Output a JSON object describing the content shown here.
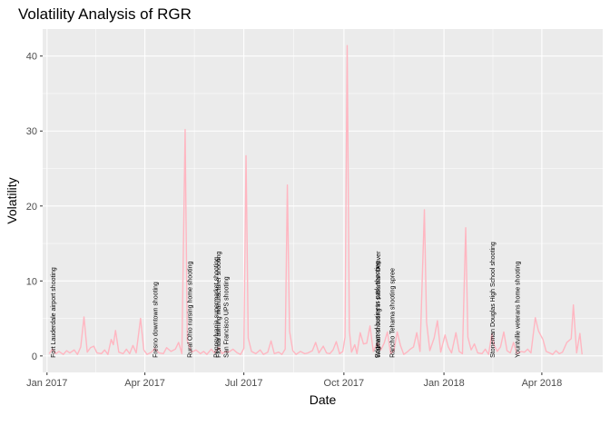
{
  "chart_data": {
    "type": "line",
    "title": "Volatility Analysis of RGR",
    "xlabel": "Date",
    "ylabel": "Volatility",
    "x_start": "2016-12-28",
    "x_end": "2018-05-27",
    "ylim": [
      -2.2,
      43.6
    ],
    "grid": true,
    "line_color": "#ffb6c1",
    "panel_background": "#ebebeb",
    "x_ticks": [
      {
        "date": "2017-01-01",
        "label": "Jan 2017"
      },
      {
        "date": "2017-04-01",
        "label": "Apr 2017"
      },
      {
        "date": "2017-07-01",
        "label": "Jul 2017"
      },
      {
        "date": "2017-10-01",
        "label": "Oct 2017"
      },
      {
        "date": "2018-01-01",
        "label": "Jan 2018"
      },
      {
        "date": "2018-04-01",
        "label": "Apr 2018"
      }
    ],
    "y_ticks": [
      0,
      10,
      20,
      30,
      40
    ],
    "series": [
      {
        "points": [
          [
            "2017-01-03",
            0.3
          ],
          [
            "2017-01-06",
            0.9
          ],
          [
            "2017-01-09",
            0.3
          ],
          [
            "2017-01-12",
            0.6
          ],
          [
            "2017-01-16",
            0.2
          ],
          [
            "2017-01-19",
            0.7
          ],
          [
            "2017-01-22",
            0.4
          ],
          [
            "2017-01-26",
            0.8
          ],
          [
            "2017-01-29",
            0.2
          ],
          [
            "2017-02-01",
            1.2
          ],
          [
            "2017-02-04",
            5.2
          ],
          [
            "2017-02-07",
            0.5
          ],
          [
            "2017-02-10",
            1.1
          ],
          [
            "2017-02-13",
            1.3
          ],
          [
            "2017-02-16",
            0.4
          ],
          [
            "2017-02-20",
            0.3
          ],
          [
            "2017-02-23",
            0.8
          ],
          [
            "2017-02-26",
            0.2
          ],
          [
            "2017-03-01",
            2.2
          ],
          [
            "2017-03-03",
            1.5
          ],
          [
            "2017-03-05",
            3.4
          ],
          [
            "2017-03-08",
            0.5
          ],
          [
            "2017-03-12",
            0.3
          ],
          [
            "2017-03-15",
            0.9
          ],
          [
            "2017-03-18",
            0.3
          ],
          [
            "2017-03-21",
            1.4
          ],
          [
            "2017-03-24",
            0.4
          ],
          [
            "2017-03-28",
            5.0
          ],
          [
            "2017-03-31",
            0.8
          ],
          [
            "2017-04-03",
            0.2
          ],
          [
            "2017-04-07",
            0.5
          ],
          [
            "2017-04-10",
            1.0
          ],
          [
            "2017-04-14",
            0.4
          ],
          [
            "2017-04-18",
            0.3
          ],
          [
            "2017-04-21",
            1.1
          ],
          [
            "2017-04-25",
            0.6
          ],
          [
            "2017-04-29",
            0.9
          ],
          [
            "2017-05-02",
            1.8
          ],
          [
            "2017-05-05",
            0.3
          ],
          [
            "2017-05-08",
            30.2
          ],
          [
            "2017-05-10",
            2.0
          ],
          [
            "2017-05-14",
            0.5
          ],
          [
            "2017-05-18",
            0.8
          ],
          [
            "2017-05-22",
            0.3
          ],
          [
            "2017-05-25",
            0.6
          ],
          [
            "2017-05-28",
            0.2
          ],
          [
            "2017-06-01",
            0.9
          ],
          [
            "2017-06-04",
            0.4
          ],
          [
            "2017-06-08",
            1.1
          ],
          [
            "2017-06-11",
            0.3
          ],
          [
            "2017-06-14",
            0.6
          ],
          [
            "2017-06-17",
            0.5
          ],
          [
            "2017-06-21",
            0.9
          ],
          [
            "2017-06-25",
            0.4
          ],
          [
            "2017-06-28",
            0.2
          ],
          [
            "2017-07-01",
            1.0
          ],
          [
            "2017-07-03",
            26.7
          ],
          [
            "2017-07-05",
            2.4
          ],
          [
            "2017-07-08",
            0.6
          ],
          [
            "2017-07-12",
            0.3
          ],
          [
            "2017-07-16",
            0.8
          ],
          [
            "2017-07-19",
            0.2
          ],
          [
            "2017-07-23",
            0.5
          ],
          [
            "2017-07-26",
            2.0
          ],
          [
            "2017-07-29",
            0.3
          ],
          [
            "2017-08-02",
            0.5
          ],
          [
            "2017-08-05",
            0.2
          ],
          [
            "2017-08-08",
            0.9
          ],
          [
            "2017-08-10",
            22.8
          ],
          [
            "2017-08-12",
            3.3
          ],
          [
            "2017-08-15",
            0.7
          ],
          [
            "2017-08-18",
            0.2
          ],
          [
            "2017-08-22",
            0.6
          ],
          [
            "2017-08-26",
            0.3
          ],
          [
            "2017-08-29",
            0.4
          ],
          [
            "2017-09-02",
            0.7
          ],
          [
            "2017-09-05",
            1.8
          ],
          [
            "2017-09-08",
            0.4
          ],
          [
            "2017-09-12",
            1.3
          ],
          [
            "2017-09-15",
            0.4
          ],
          [
            "2017-09-18",
            0.3
          ],
          [
            "2017-09-21",
            0.8
          ],
          [
            "2017-09-24",
            1.9
          ],
          [
            "2017-09-27",
            0.3
          ],
          [
            "2017-09-30",
            0.6
          ],
          [
            "2017-10-02",
            2.5
          ],
          [
            "2017-10-04",
            41.4
          ],
          [
            "2017-10-06",
            3.4
          ],
          [
            "2017-10-08",
            0.5
          ],
          [
            "2017-10-11",
            1.5
          ],
          [
            "2017-10-13",
            0.3
          ],
          [
            "2017-10-16",
            3.1
          ],
          [
            "2017-10-19",
            1.6
          ],
          [
            "2017-10-22",
            1.7
          ],
          [
            "2017-10-25",
            4.0
          ],
          [
            "2017-10-28",
            0.6
          ],
          [
            "2017-11-01",
            1.8
          ],
          [
            "2017-11-04",
            0.8
          ],
          [
            "2017-11-07",
            1.7
          ],
          [
            "2017-11-10",
            3.2
          ],
          [
            "2017-11-13",
            0.3
          ],
          [
            "2017-11-16",
            0.7
          ],
          [
            "2017-11-19",
            3.2
          ],
          [
            "2017-11-22",
            1.4
          ],
          [
            "2017-11-25",
            0.2
          ],
          [
            "2017-11-28",
            0.5
          ],
          [
            "2017-12-01",
            0.9
          ],
          [
            "2017-12-04",
            1.2
          ],
          [
            "2017-12-07",
            3.1
          ],
          [
            "2017-12-10",
            0.6
          ],
          [
            "2017-12-14",
            19.5
          ],
          [
            "2017-12-16",
            4.5
          ],
          [
            "2017-12-19",
            0.7
          ],
          [
            "2017-12-23",
            2.4
          ],
          [
            "2017-12-26",
            4.7
          ],
          [
            "2017-12-29",
            0.5
          ],
          [
            "2018-01-02",
            2.8
          ],
          [
            "2018-01-05",
            1.2
          ],
          [
            "2018-01-08",
            0.4
          ],
          [
            "2018-01-12",
            3.1
          ],
          [
            "2018-01-15",
            0.6
          ],
          [
            "2018-01-18",
            0.3
          ],
          [
            "2018-01-21",
            17.1
          ],
          [
            "2018-01-23",
            2.5
          ],
          [
            "2018-01-26",
            0.8
          ],
          [
            "2018-01-29",
            1.6
          ],
          [
            "2018-02-01",
            0.4
          ],
          [
            "2018-02-05",
            0.3
          ],
          [
            "2018-02-08",
            0.9
          ],
          [
            "2018-02-11",
            0.2
          ],
          [
            "2018-02-14",
            2.9
          ],
          [
            "2018-02-16",
            1.5
          ],
          [
            "2018-02-19",
            0.6
          ],
          [
            "2018-02-22",
            1.2
          ],
          [
            "2018-02-25",
            3.2
          ],
          [
            "2018-02-28",
            0.7
          ],
          [
            "2018-03-03",
            0.4
          ],
          [
            "2018-03-06",
            1.8
          ],
          [
            "2018-03-09",
            0.3
          ],
          [
            "2018-03-13",
            0.6
          ],
          [
            "2018-03-16",
            0.5
          ],
          [
            "2018-03-19",
            0.9
          ],
          [
            "2018-03-22",
            0.4
          ],
          [
            "2018-03-26",
            5.1
          ],
          [
            "2018-03-29",
            3.3
          ],
          [
            "2018-04-02",
            2.2
          ],
          [
            "2018-04-05",
            0.6
          ],
          [
            "2018-04-08",
            0.4
          ],
          [
            "2018-04-11",
            0.2
          ],
          [
            "2018-04-14",
            0.7
          ],
          [
            "2018-04-17",
            0.3
          ],
          [
            "2018-04-20",
            0.5
          ],
          [
            "2018-04-24",
            1.8
          ],
          [
            "2018-04-28",
            2.3
          ],
          [
            "2018-04-30",
            6.8
          ],
          [
            "2018-05-03",
            0.4
          ],
          [
            "2018-05-06",
            3.0
          ],
          [
            "2018-05-08",
            0.2
          ]
        ]
      }
    ],
    "annotations": [
      {
        "date": "2017-01-06",
        "text": "Fort Lauderdale airport shooting"
      },
      {
        "date": "2017-04-10",
        "text": "Fresno downtown shooting"
      },
      {
        "date": "2017-05-12",
        "text": "Rural Ohio nursing home shooting"
      },
      {
        "date": "2017-06-05",
        "text": "Pennsylvania supermarket shooting"
      },
      {
        "date": "2017-06-07",
        "text": "Florida awning manufacturer shooting"
      },
      {
        "date": "2017-06-14",
        "text": "San Francisco UPS shooting"
      },
      {
        "date": "2017-10-31",
        "text": "Edgewood business park shooting"
      },
      {
        "date": "2017-11-01",
        "text": "Walmart shooting in suburban Denver"
      },
      {
        "date": "2017-11-14",
        "text": "Rancho Tehama shooting spree"
      },
      {
        "date": "2018-02-14",
        "text": "Stoneman Douglas High School shooting"
      },
      {
        "date": "2018-03-09",
        "text": "Yountville veterans home shooting"
      }
    ]
  }
}
